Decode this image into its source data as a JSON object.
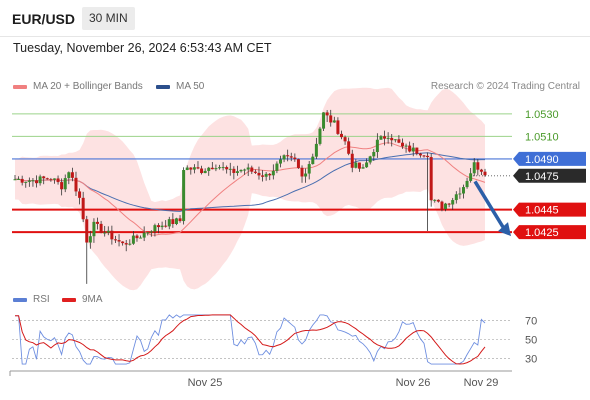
{
  "header": {
    "symbol": "EUR/USD",
    "timeframe": "30 MIN"
  },
  "datetime": "Tuesday, November 26, 2024 6:53:43 AM CET",
  "legend": {
    "ma20": {
      "label": "MA 20 + Bollinger Bands",
      "color": "#f08080"
    },
    "ma50": {
      "label": "MA 50",
      "color": "#2c4f8c"
    },
    "credit": "Research © 2024 Trading Central"
  },
  "rsi_legend": {
    "rsi": {
      "label": "RSI",
      "color": "#5b7fd4"
    },
    "ma9": {
      "label": "9MA",
      "color": "#e02020"
    }
  },
  "chart_data": [
    {
      "type": "candlestick",
      "title": "EUR/USD",
      "ylim": [
        1.0378,
        1.0545
      ],
      "x_labels": [
        "Nov 25",
        "Nov 26",
        "Nov 29"
      ],
      "levels": [
        {
          "value": 1.053,
          "label": "1.0530",
          "style": "green"
        },
        {
          "value": 1.051,
          "label": "1.0510",
          "style": "green"
        },
        {
          "value": 1.049,
          "label": "1.0490",
          "style": "blue"
        },
        {
          "value": 1.0475,
          "label": "1.0475",
          "style": "current"
        },
        {
          "value": 1.0445,
          "label": "1.0445",
          "style": "red"
        },
        {
          "value": 1.0425,
          "label": "1.0425",
          "style": "red"
        }
      ],
      "forecast_arrow": {
        "from": 1.047,
        "to": 1.0425
      },
      "grid": false
    },
    {
      "type": "line",
      "title": "RSI",
      "series": [
        {
          "name": "RSI"
        },
        {
          "name": "9MA"
        }
      ],
      "ylim": [
        22,
        78
      ],
      "y_ticks": [
        70,
        50,
        30
      ],
      "grid": true
    }
  ]
}
